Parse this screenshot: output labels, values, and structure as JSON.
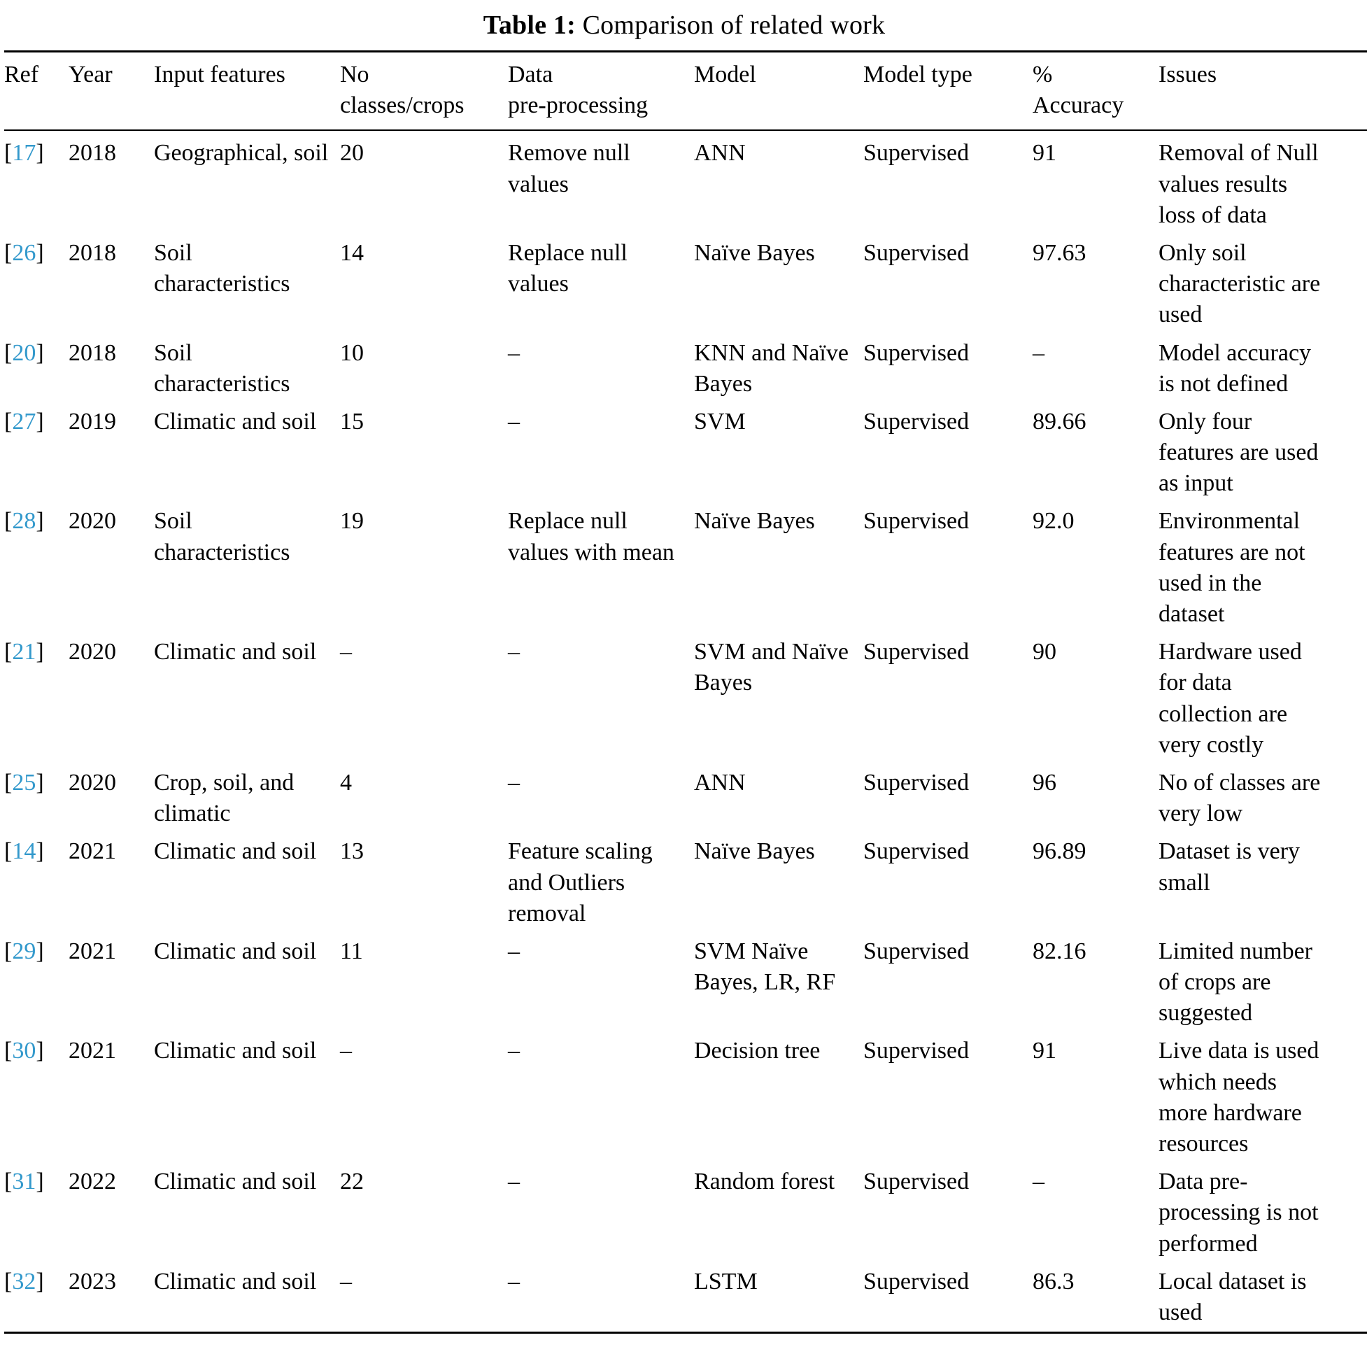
{
  "accent_color": "#3399cc",
  "text_color": "#000000",
  "title": {
    "label": "Table 1:",
    "caption": "Comparison of related work"
  },
  "table": {
    "headers": [
      {
        "key": "ref",
        "lines": [
          "Ref"
        ]
      },
      {
        "key": "year",
        "lines": [
          "Year"
        ]
      },
      {
        "key": "input",
        "lines": [
          "Input features"
        ]
      },
      {
        "key": "classes",
        "lines": [
          "No",
          "classes/crops"
        ]
      },
      {
        "key": "prep",
        "lines": [
          "Data",
          "pre-processing"
        ]
      },
      {
        "key": "model",
        "lines": [
          "Model"
        ]
      },
      {
        "key": "type",
        "lines": [
          "Model type"
        ]
      },
      {
        "key": "acc",
        "lines": [
          "%",
          "Accuracy"
        ]
      },
      {
        "key": "issues",
        "lines": [
          "Issues"
        ]
      }
    ],
    "rows": [
      {
        "ref": "17",
        "year": "2018",
        "input": "Geographical, soil",
        "classes": "20",
        "prep": "Remove null values",
        "model": "ANN",
        "type": "Supervised",
        "acc": "91",
        "issues": "Removal of Null values results loss of data"
      },
      {
        "ref": "26",
        "year": "2018",
        "input": "Soil characteristics",
        "classes": "14",
        "prep": "Replace null values",
        "model": "Naïve Bayes",
        "type": "Supervised",
        "acc": "97.63",
        "issues": "Only soil characteristic are used"
      },
      {
        "ref": "20",
        "year": "2018",
        "input": "Soil characteristics",
        "classes": "10",
        "prep": "–",
        "model": "KNN and Naïve Bayes",
        "type": "Supervised",
        "acc": "–",
        "issues": "Model accuracy is not defined"
      },
      {
        "ref": "27",
        "year": "2019",
        "input": "Climatic and soil",
        "classes": "15",
        "prep": "–",
        "model": "SVM",
        "type": "Supervised",
        "acc": "89.66",
        "issues": "Only four features are used as input"
      },
      {
        "ref": "28",
        "year": "2020",
        "input": "Soil characteristics",
        "classes": "19",
        "prep": "Replace null values with mean",
        "model": "Naïve Bayes",
        "type": "Supervised",
        "acc": "92.0",
        "issues": "Environmental features are not used in the dataset"
      },
      {
        "ref": "21",
        "year": "2020",
        "input": "Climatic and soil",
        "classes": "–",
        "prep": "–",
        "model": "SVM and Naïve Bayes",
        "type": "Supervised",
        "acc": "90",
        "issues": "Hardware used for data collection are very costly"
      },
      {
        "ref": "25",
        "year": "2020",
        "input": "Crop, soil, and climatic",
        "classes": "4",
        "prep": "–",
        "model": "ANN",
        "type": "Supervised",
        "acc": "96",
        "issues": "No of classes are very low"
      },
      {
        "ref": "14",
        "year": "2021",
        "input": "Climatic and soil",
        "classes": "13",
        "prep": "Feature scaling and Outliers removal",
        "model": "Naïve Bayes",
        "type": "Supervised",
        "acc": "96.89",
        "issues": "Dataset is very small"
      },
      {
        "ref": "29",
        "year": "2021",
        "input": "Climatic and soil",
        "classes": "11",
        "prep": "–",
        "model": "SVM Naïve Bayes, LR, RF",
        "type": "Supervised",
        "acc": "82.16",
        "issues": "Limited number of crops are suggested"
      },
      {
        "ref": "30",
        "year": "2021",
        "input": "Climatic and soil",
        "classes": "–",
        "prep": "–",
        "model": "Decision tree",
        "type": "Supervised",
        "acc": "91",
        "issues": "Live data is used which needs more hardware resources"
      },
      {
        "ref": "31",
        "year": "2022",
        "input": "Climatic and soil",
        "classes": "22",
        "prep": "–",
        "model": "Random forest",
        "type": "Supervised",
        "acc": "–",
        "issues": "Data pre-processing is not performed"
      },
      {
        "ref": "32",
        "year": "2023",
        "input": "Climatic and soil",
        "classes": "–",
        "prep": "–",
        "model": "LSTM",
        "type": "Supervised",
        "acc": "86.3",
        "issues": "Local dataset is used"
      }
    ]
  }
}
